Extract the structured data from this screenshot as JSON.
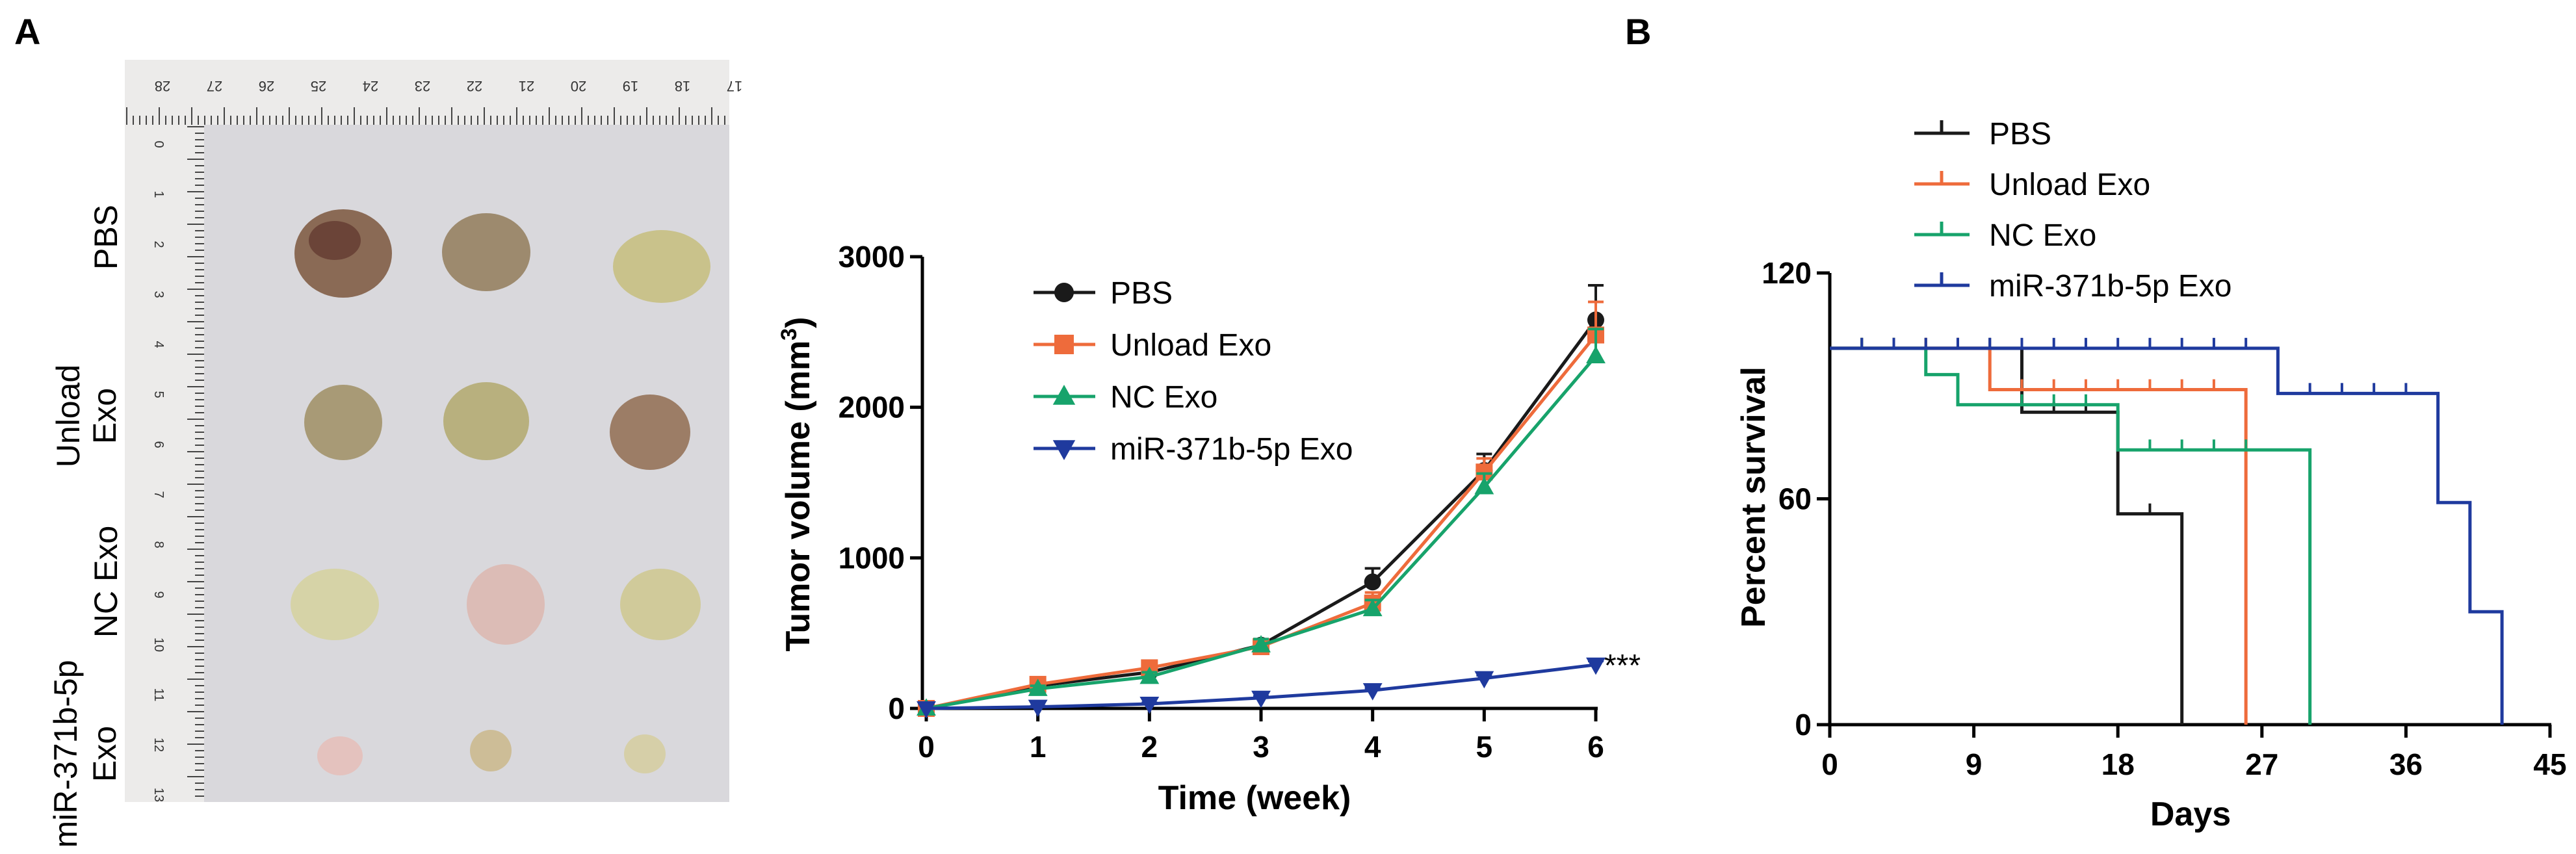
{
  "panels": {
    "a": "A",
    "b": "B"
  },
  "photo": {
    "row_labels": [
      {
        "lines": [
          "PBS"
        ]
      },
      {
        "lines": [
          "Unload",
          "Exo"
        ]
      },
      {
        "lines": [
          "NC Exo"
        ]
      },
      {
        "lines": [
          "miR-371b-5p",
          "Exo"
        ]
      }
    ],
    "ruler_top_numbers": [
      "28",
      "27",
      "26",
      "25",
      "24",
      "23",
      "22",
      "21",
      "20",
      "19",
      "18",
      "17"
    ],
    "ruler_left_numbers": [
      "0",
      "1",
      "2",
      "3",
      "4",
      "5",
      "6",
      "7",
      "8",
      "9",
      "10",
      "11",
      "12",
      "13"
    ]
  },
  "colors": {
    "PBS": "#1a1a1a",
    "Unload Exo": "#ee6b3b",
    "NC Exo": "#17a36b",
    "miR-371b-5p Exo": "#1f3a9e"
  },
  "chart_data": [
    {
      "type": "line",
      "title": "",
      "xlabel": "Time (week)",
      "ylabel": "Tumor volume (mm",
      "ylabel_superscript": "3",
      "ylabel_close": ")",
      "xlim": [
        0,
        6
      ],
      "ylim": [
        0,
        3000
      ],
      "xticks": [
        0,
        1,
        2,
        3,
        4,
        5,
        6
      ],
      "yticks": [
        0,
        1000,
        2000,
        3000
      ],
      "x": [
        0,
        1,
        2,
        3,
        4,
        5,
        6
      ],
      "series": [
        {
          "name": "PBS",
          "marker": "circle",
          "values": [
            0,
            150,
            240,
            420,
            840,
            1580,
            2580
          ],
          "errors": [
            0,
            25,
            35,
            40,
            90,
            110,
            230
          ]
        },
        {
          "name": "Unload Exo",
          "marker": "square",
          "values": [
            0,
            160,
            270,
            410,
            700,
            1570,
            2480
          ],
          "errors": [
            0,
            25,
            35,
            40,
            70,
            90,
            220
          ]
        },
        {
          "name": "NC Exo",
          "marker": "triangle-up",
          "values": [
            0,
            130,
            210,
            420,
            660,
            1470,
            2340
          ],
          "errors": [
            0,
            20,
            30,
            40,
            60,
            90,
            180
          ]
        },
        {
          "name": "miR-371b-5p Exo",
          "marker": "triangle-down",
          "values": [
            0,
            10,
            30,
            70,
            120,
            200,
            290
          ],
          "errors": [
            0,
            5,
            8,
            10,
            15,
            20,
            25
          ]
        }
      ],
      "annotation": "***",
      "legend_position": "top-left"
    },
    {
      "type": "step",
      "title": "",
      "xlabel": "Days",
      "ylabel": "Percent survival",
      "xlim": [
        0,
        45
      ],
      "ylim": [
        0,
        120
      ],
      "xticks": [
        0,
        9,
        18,
        27,
        36,
        45
      ],
      "yticks": [
        0,
        60,
        120
      ],
      "series": [
        {
          "name": "PBS",
          "steps": [
            [
              0,
              100
            ],
            [
              12,
              100
            ],
            [
              12,
              83
            ],
            [
              18,
              83
            ],
            [
              18,
              56
            ],
            [
              22,
              56
            ],
            [
              22,
              0
            ]
          ],
          "censor": [
            2,
            4,
            6,
            8,
            10,
            14,
            16,
            20
          ]
        },
        {
          "name": "Unload Exo",
          "steps": [
            [
              0,
              100
            ],
            [
              10,
              100
            ],
            [
              10,
              89
            ],
            [
              26,
              89
            ],
            [
              26,
              0
            ]
          ],
          "censor": [
            2,
            4,
            6,
            8,
            12,
            14,
            16,
            18,
            20,
            22,
            24
          ]
        },
        {
          "name": "NC Exo",
          "steps": [
            [
              0,
              100
            ],
            [
              6,
              100
            ],
            [
              6,
              93
            ],
            [
              8,
              93
            ],
            [
              8,
              85
            ],
            [
              18,
              85
            ],
            [
              18,
              73
            ],
            [
              30,
              73
            ],
            [
              30,
              0
            ]
          ],
          "censor": [
            2,
            4,
            12,
            14,
            16,
            20,
            22,
            24,
            26
          ]
        },
        {
          "name": "miR-371b-5p Exo",
          "steps": [
            [
              0,
              100
            ],
            [
              28,
              100
            ],
            [
              28,
              88
            ],
            [
              38,
              88
            ],
            [
              38,
              59
            ],
            [
              40,
              59
            ],
            [
              40,
              30
            ],
            [
              42,
              30
            ],
            [
              42,
              0
            ]
          ],
          "censor": [
            2,
            4,
            6,
            8,
            10,
            12,
            14,
            16,
            18,
            20,
            22,
            24,
            26,
            30,
            32,
            34,
            36
          ]
        }
      ],
      "legend_position": "top-left"
    }
  ]
}
